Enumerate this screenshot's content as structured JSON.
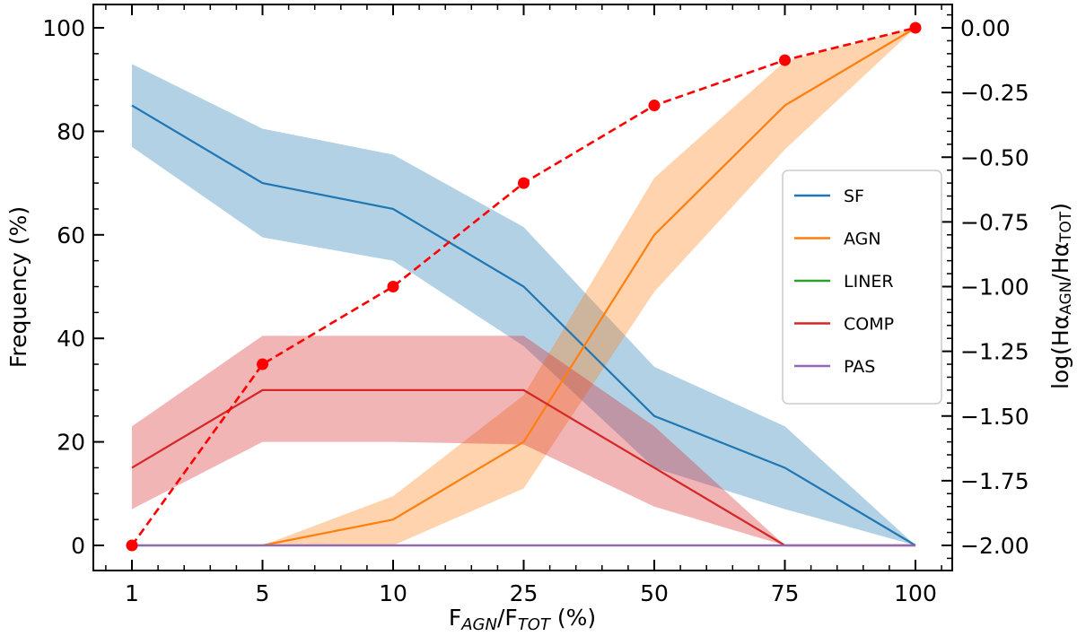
{
  "chart_data": {
    "type": "line",
    "x_categories": [
      "1",
      "5",
      "10",
      "25",
      "50",
      "75",
      "100"
    ],
    "xlabel": {
      "main": "F",
      "sub1": "AGN",
      "mid": "/F",
      "sub2": "TOT",
      "tail": " (%)"
    },
    "ylabel_left": "Frequency (%)",
    "ylabel_right": {
      "prefix": "log(Hα",
      "sub1": "AGN",
      "mid": "/Hα",
      "sub2": "TOT",
      "suffix": ")"
    },
    "ylim_left": [
      0,
      100
    ],
    "ylim_right": [
      -2.0,
      0.0
    ],
    "yticks_left": [
      "0",
      "20",
      "40",
      "60",
      "80",
      "100"
    ],
    "yticks_right": [
      "0.00",
      "−0.25",
      "−0.50",
      "−0.75",
      "−1.00",
      "−1.25",
      "−1.50",
      "−1.75",
      "−2.00"
    ],
    "series": [
      {
        "name": "SF",
        "color": "#1f77b4",
        "values": [
          85,
          70,
          65,
          50,
          25,
          15,
          0
        ],
        "lower": [
          77,
          59.5,
          55,
          38.5,
          15,
          7,
          0
        ],
        "upper": [
          93,
          80.5,
          75.5,
          61.5,
          34.5,
          23,
          0
        ]
      },
      {
        "name": "AGN",
        "color": "#ff7f0e",
        "values": [
          0,
          0,
          5,
          20,
          60,
          85,
          100
        ],
        "lower": [
          0,
          0,
          0,
          11,
          49,
          76.5,
          100
        ],
        "upper": [
          0,
          0,
          9.5,
          29,
          71,
          93.5,
          100
        ]
      },
      {
        "name": "LINER",
        "color": "#2ca02c",
        "values": [
          0,
          0,
          0,
          0,
          0,
          0,
          0
        ]
      },
      {
        "name": "COMP",
        "color": "#d62728",
        "values": [
          15,
          30,
          30,
          30,
          15,
          0,
          0
        ],
        "lower": [
          7,
          20,
          20,
          19.5,
          7.5,
          0,
          0
        ],
        "upper": [
          23,
          40.5,
          40.5,
          40.5,
          23,
          0,
          0
        ]
      },
      {
        "name": "PAS",
        "color": "#9467bd",
        "values": [
          0,
          0,
          0,
          0,
          0,
          0,
          0
        ]
      }
    ],
    "right_axis_series": {
      "name": "log ratio",
      "color": "#ff0000",
      "style": "dashed",
      "values": [
        -2.0,
        -1.3,
        -1.0,
        -0.6,
        -0.3,
        -0.125,
        0.0
      ]
    },
    "legend": {
      "position": "center-right",
      "entries": [
        "SF",
        "AGN",
        "LINER",
        "COMP",
        "PAS"
      ]
    }
  }
}
